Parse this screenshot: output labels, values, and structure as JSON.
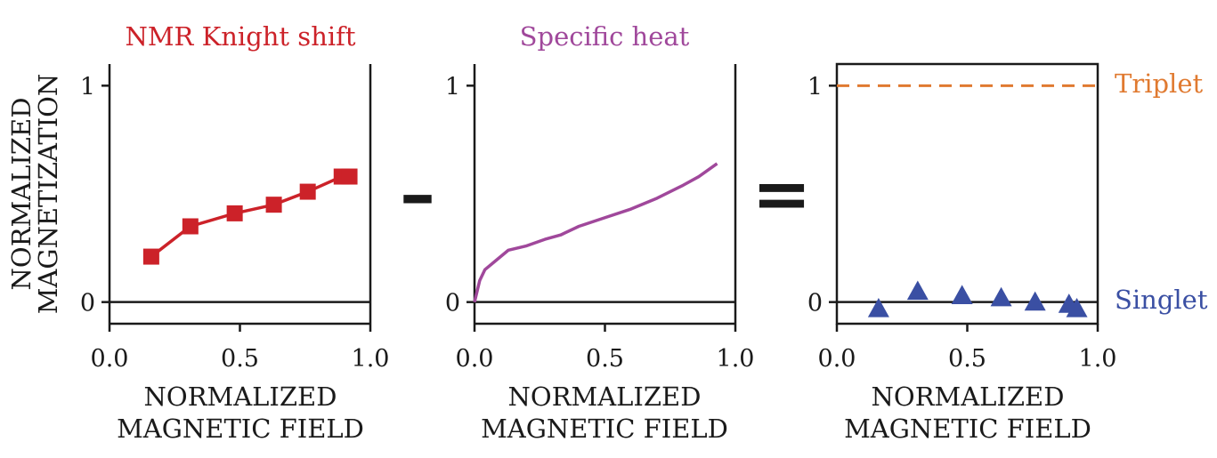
{
  "figure": {
    "ylabel": [
      "NORMALIZED",
      "MAGNETIZATION"
    ],
    "operators": [
      "–",
      "="
    ],
    "colors": {
      "knight": "#cc2229",
      "heat": "#a0489b",
      "diff": "#3a4fa3",
      "triplet": "#e07a30",
      "axis": "#1a1a1a"
    }
  },
  "chart_data": [
    {
      "type": "line",
      "title": "NMR Knight shift",
      "xlabel": [
        "NORMALIZED",
        "MAGNETIC FIELD"
      ],
      "xlim": [
        0.0,
        1.0
      ],
      "ylim": [
        -0.1,
        1.1
      ],
      "xticks": [
        "0.0",
        "0.5",
        "1.0"
      ],
      "yticks": [
        "0",
        "1"
      ],
      "marker": "square",
      "series": [
        {
          "x": [
            0.16,
            0.31,
            0.48,
            0.63,
            0.76,
            0.89,
            0.92
          ],
          "y": [
            0.21,
            0.35,
            0.41,
            0.45,
            0.51,
            0.58,
            0.58
          ]
        }
      ]
    },
    {
      "type": "line",
      "title": "Specific heat",
      "xlabel": [
        "NORMALIZED",
        "MAGNETIC FIELD"
      ],
      "xlim": [
        0.0,
        1.0
      ],
      "ylim": [
        -0.1,
        1.1
      ],
      "xticks": [
        "0.0",
        "0.5",
        "1.0"
      ],
      "yticks": [
        "0",
        "1"
      ],
      "marker": "none",
      "series": [
        {
          "x": [
            0.0,
            0.02,
            0.04,
            0.07,
            0.13,
            0.2,
            0.27,
            0.33,
            0.4,
            0.5,
            0.6,
            0.7,
            0.8,
            0.86,
            0.93
          ],
          "y": [
            0.0,
            0.1,
            0.15,
            0.18,
            0.24,
            0.26,
            0.29,
            0.31,
            0.35,
            0.39,
            0.43,
            0.48,
            0.54,
            0.58,
            0.64
          ]
        }
      ]
    },
    {
      "type": "scatter",
      "title": "",
      "xlabel": [
        "NORMALIZED",
        "MAGNETIC FIELD"
      ],
      "xlim": [
        0.0,
        1.0
      ],
      "ylim": [
        -0.1,
        1.1
      ],
      "xticks": [
        "0.0",
        "0.5",
        "1.0"
      ],
      "yticks": [
        "0",
        "1"
      ],
      "marker": "triangle",
      "series": [
        {
          "x": [
            0.16,
            0.31,
            0.48,
            0.63,
            0.76,
            0.89,
            0.92
          ],
          "y": [
            -0.03,
            0.05,
            0.03,
            0.02,
            0.0,
            -0.01,
            -0.03
          ]
        }
      ],
      "reference_lines": [
        {
          "y": 1,
          "label": "Triplet",
          "style": "dashed"
        },
        {
          "y": 0,
          "label": "Singlet",
          "style": "solid"
        }
      ]
    }
  ]
}
